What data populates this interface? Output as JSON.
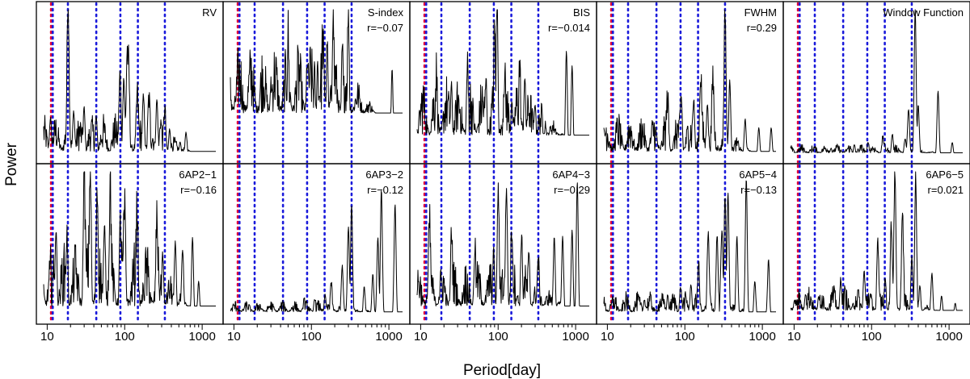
{
  "chart_data": {
    "type": "line",
    "title": "",
    "xlabel": "Period[day]",
    "ylabel": "Power",
    "x_scale": "log",
    "xlim": [
      9,
      1500
    ],
    "x_ticks": [
      10,
      100,
      1000
    ],
    "x_tick_labels": [
      "10",
      "100",
      "1000"
    ],
    "marker_lines": {
      "style": "dotted",
      "colors": {
        "red": "#e0003c",
        "blue": "#1a1adb"
      },
      "red_periods": [
        11.2
      ],
      "blue_periods": [
        11.8,
        18.5,
        43,
        88,
        148,
        330
      ]
    },
    "panels": [
      {
        "label": "RV",
        "correlation": "",
        "peaks": [
          [
            11,
            0.25
          ],
          [
            18.6,
            0.98
          ],
          [
            22,
            0.3
          ],
          [
            30,
            0.3
          ],
          [
            43,
            0.25
          ],
          [
            87,
            0.55
          ],
          [
            97,
            0.48
          ],
          [
            108,
            0.6
          ],
          [
            112,
            0.55
          ],
          [
            145,
            0.32
          ],
          [
            175,
            0.38
          ],
          [
            205,
            0.3
          ],
          [
            260,
            0.38
          ],
          [
            290,
            0.18
          ],
          [
            330,
            0.28
          ],
          [
            380,
            0.18
          ],
          [
            520,
            0.1
          ],
          [
            620,
            0.15
          ]
        ],
        "noise": 0.26,
        "floor": 0.04
      },
      {
        "label": "S-index",
        "correlation": "r=−0.07",
        "peaks": [
          [
            20,
            0.3
          ],
          [
            30,
            0.45
          ],
          [
            50,
            0.6
          ],
          [
            88,
            0.55
          ],
          [
            110,
            0.5
          ],
          [
            120,
            0.6
          ],
          [
            140,
            0.55
          ],
          [
            160,
            0.75
          ],
          [
            190,
            0.82
          ],
          [
            250,
            0.68
          ],
          [
            300,
            0.86
          ],
          [
            500,
            0.2
          ],
          [
            720,
            0.25
          ],
          [
            1100,
            0.6
          ]
        ],
        "noise": 0.5,
        "floor": 0.3
      },
      {
        "label": "BIS",
        "correlation": "r=−0.014",
        "peaks": [
          [
            16,
            0.4
          ],
          [
            25,
            0.45
          ],
          [
            40,
            0.5
          ],
          [
            70,
            0.45
          ],
          [
            90,
            0.6
          ],
          [
            97,
            0.93
          ],
          [
            120,
            0.4
          ],
          [
            150,
            0.35
          ],
          [
            190,
            0.45
          ],
          [
            220,
            0.5
          ],
          [
            300,
            0.35
          ],
          [
            410,
            0.2
          ],
          [
            760,
            0.72
          ],
          [
            900,
            0.62
          ]
        ],
        "noise": 0.42,
        "floor": 0.15
      },
      {
        "label": "FWHM",
        "correlation": "r=0.29",
        "peaks": [
          [
            60,
            0.3
          ],
          [
            90,
            0.35
          ],
          [
            130,
            0.35
          ],
          [
            160,
            0.45
          ],
          [
            195,
            0.35
          ],
          [
            230,
            0.42
          ],
          [
            330,
            0.93
          ],
          [
            380,
            0.5
          ],
          [
            600,
            0.25
          ],
          [
            900,
            0.2
          ],
          [
            1300,
            0.2
          ]
        ],
        "noise": 0.28,
        "floor": 0.04
      },
      {
        "label": "Window Function",
        "correlation": "",
        "peaks": [
          [
            30,
            0.06
          ],
          [
            60,
            0.08
          ],
          [
            90,
            0.1
          ],
          [
            140,
            0.12
          ],
          [
            185,
            0.15
          ],
          [
            270,
            0.12
          ],
          [
            300,
            0.3
          ],
          [
            365,
            1.0
          ],
          [
            400,
            0.35
          ],
          [
            720,
            0.45
          ],
          [
            1100,
            0.1
          ]
        ],
        "noise": 0.06,
        "floor": 0.03
      },
      {
        "label": "6AP2−1",
        "correlation": "r=−0.16",
        "peaks": [
          [
            13,
            0.55
          ],
          [
            18,
            0.48
          ],
          [
            30,
            0.9
          ],
          [
            36,
            0.9
          ],
          [
            44,
            0.72
          ],
          [
            55,
            0.6
          ],
          [
            65,
            0.7
          ],
          [
            88,
            0.5
          ],
          [
            100,
            0.55
          ],
          [
            145,
            0.6
          ],
          [
            260,
            0.55
          ],
          [
            310,
            0.4
          ],
          [
            450,
            0.5
          ],
          [
            560,
            0.4
          ],
          [
            750,
            0.55
          ],
          [
            900,
            0.25
          ]
        ],
        "noise": 0.45,
        "floor": 0.08
      },
      {
        "label": "6AP3−2",
        "correlation": "r=−0.12",
        "peaks": [
          [
            80,
            0.1
          ],
          [
            110,
            0.12
          ],
          [
            150,
            0.15
          ],
          [
            180,
            0.2
          ],
          [
            250,
            0.3
          ],
          [
            300,
            0.62
          ],
          [
            330,
            0.75
          ],
          [
            480,
            0.2
          ],
          [
            620,
            0.3
          ],
          [
            720,
            0.55
          ],
          [
            800,
            0.88
          ],
          [
            1200,
            0.78
          ]
        ],
        "noise": 0.08,
        "floor": 0.04
      },
      {
        "label": "6AP4−3",
        "correlation": "r=−0.29",
        "peaks": [
          [
            13,
            0.5
          ],
          [
            25,
            0.5
          ],
          [
            50,
            0.4
          ],
          [
            88,
            0.38
          ],
          [
            100,
            0.8
          ],
          [
            128,
            0.85
          ],
          [
            150,
            0.5
          ],
          [
            200,
            0.5
          ],
          [
            250,
            0.35
          ],
          [
            330,
            0.3
          ],
          [
            530,
            0.55
          ],
          [
            680,
            0.55
          ],
          [
            900,
            0.6
          ],
          [
            1050,
            0.93
          ]
        ],
        "noise": 0.32,
        "floor": 0.08
      },
      {
        "label": "6AP5−4",
        "correlation": "r=−0.13",
        "peaks": [
          [
            30,
            0.12
          ],
          [
            60,
            0.15
          ],
          [
            88,
            0.2
          ],
          [
            120,
            0.22
          ],
          [
            150,
            0.3
          ],
          [
            200,
            0.5
          ],
          [
            260,
            0.55
          ],
          [
            300,
            0.55
          ],
          [
            330,
            0.82
          ],
          [
            360,
            0.85
          ],
          [
            470,
            0.55
          ],
          [
            620,
            0.95
          ],
          [
            800,
            0.25
          ],
          [
            1200,
            0.4
          ]
        ],
        "noise": 0.14,
        "floor": 0.04
      },
      {
        "label": "6AP6−5",
        "correlation": "r=0.021",
        "peaks": [
          [
            14,
            0.15
          ],
          [
            40,
            0.25
          ],
          [
            80,
            0.3
          ],
          [
            120,
            0.45
          ],
          [
            150,
            0.25
          ],
          [
            180,
            0.55
          ],
          [
            200,
            0.95
          ],
          [
            250,
            0.65
          ],
          [
            330,
            0.4
          ],
          [
            370,
            0.93
          ],
          [
            420,
            0.2
          ],
          [
            600,
            0.3
          ],
          [
            800,
            0.15
          ],
          [
            1200,
            0.1
          ]
        ],
        "noise": 0.18,
        "floor": 0.05
      }
    ]
  }
}
